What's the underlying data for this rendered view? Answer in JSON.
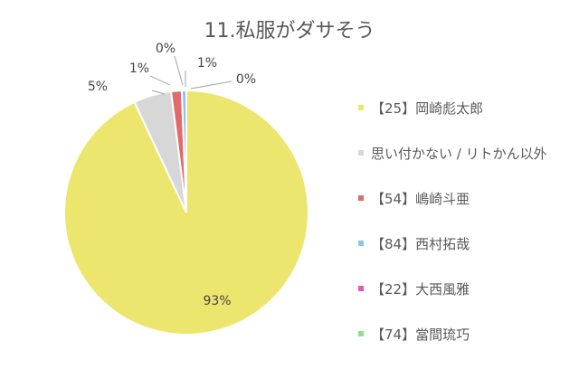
{
  "chart_data": {
    "type": "pie",
    "title": "11.私服がダサそう",
    "slices": [
      {
        "label": "【25】岡崎彪太郎",
        "value": 93,
        "display": "93%",
        "color": "#EDE66E"
      },
      {
        "label": "思い付かない / リトかん以外",
        "value": 5,
        "display": "5%",
        "color": "#D7D7D7"
      },
      {
        "label": "【54】嶋崎斗亜",
        "value": 1.4,
        "display": "1%",
        "color": "#E06B6B"
      },
      {
        "label": "【84】西村拓哉",
        "value": 0.6,
        "display": "1%",
        "color": "#8CC3E8"
      },
      {
        "label": "【22】大西風雅",
        "value": 0,
        "display": "0%",
        "color": "#D85BB5"
      },
      {
        "label": "【74】當間琉巧",
        "value": 0,
        "display": "0%",
        "color": "#8FE08F"
      }
    ],
    "legend_position": "right"
  }
}
